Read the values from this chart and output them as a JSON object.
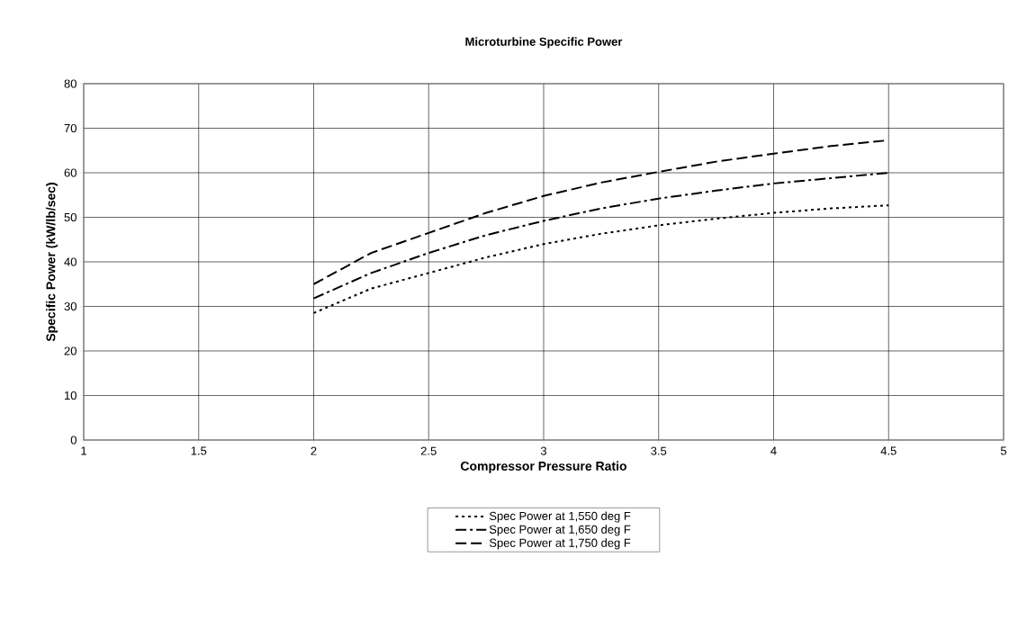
{
  "chart_data": {
    "type": "line",
    "title": "Microturbine Specific Power",
    "xlabel": "Compressor Pressure Ratio",
    "ylabel": "Specific Power (kW/lb/sec)",
    "x": [
      2,
      2.25,
      2.5,
      2.75,
      3,
      3.25,
      3.5,
      3.75,
      4,
      4.25,
      4.5
    ],
    "series": [
      {
        "name": "Spec Power at 1,550 deg F",
        "color": "#000000",
        "line_style": "dotted",
        "values": [
          28.5,
          34,
          37.5,
          41,
          44,
          46.3,
          48.2,
          49.7,
          51,
          52,
          52.7
        ]
      },
      {
        "name": "Spec Power at 1,650 deg F",
        "color": "#000000",
        "line_style": "dashdot",
        "values": [
          31.8,
          37.5,
          42,
          46,
          49.2,
          52,
          54.2,
          56,
          57.6,
          58.8,
          60
        ]
      },
      {
        "name": "Spec Power at 1,750 deg F",
        "color": "#000000",
        "line_style": "dashed",
        "values": [
          35,
          42,
          46.5,
          51,
          54.8,
          57.8,
          60.2,
          62.5,
          64.3,
          66,
          67.3
        ]
      }
    ],
    "xlim": [
      1,
      5
    ],
    "ylim": [
      0,
      80
    ],
    "xticks": [
      1,
      1.5,
      2,
      2.5,
      3,
      3.5,
      4,
      4.5,
      5
    ],
    "yticks": [
      0,
      10,
      20,
      30,
      40,
      50,
      60,
      70,
      80
    ],
    "grid": true,
    "legend": "bottom"
  }
}
